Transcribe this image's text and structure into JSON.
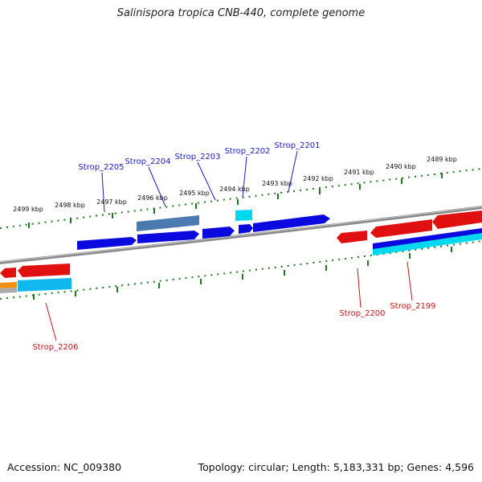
{
  "title": "Salinispora tropica CNB-440, complete genome",
  "footer": {
    "accession": "Accession: NC_009380",
    "stats": "Topology: circular; Length: 5,183,331 bp; Genes: 4,596"
  },
  "scale_labels": [
    "2499 kbp",
    "2498 kbp",
    "2497 kbp",
    "2496 kbp",
    "2495 kbp",
    "2494 kbp",
    "2493 kbp",
    "2492 kbp",
    "2491 kbp",
    "2490 kbp",
    "2489 kbp"
  ],
  "gene_labels_forward": [
    "Strop_2205",
    "Strop_2204",
    "Strop_2203",
    "Strop_2202",
    "Strop_2201"
  ],
  "gene_labels_reverse": [
    "Strop_2206",
    "Strop_2200",
    "Strop_2199"
  ],
  "colors": {
    "forward_label": "#1a1ac8",
    "reverse_label": "#c81414",
    "tick": "#1e7a1e",
    "backbone": "#8a8a8a",
    "forward_gene": "#0a0ae0",
    "reverse_gene": "#e01010",
    "cyan_feature": "#00d8f0",
    "steel_feature": "#4a7ab0",
    "orange_feature": "#f09010"
  }
}
